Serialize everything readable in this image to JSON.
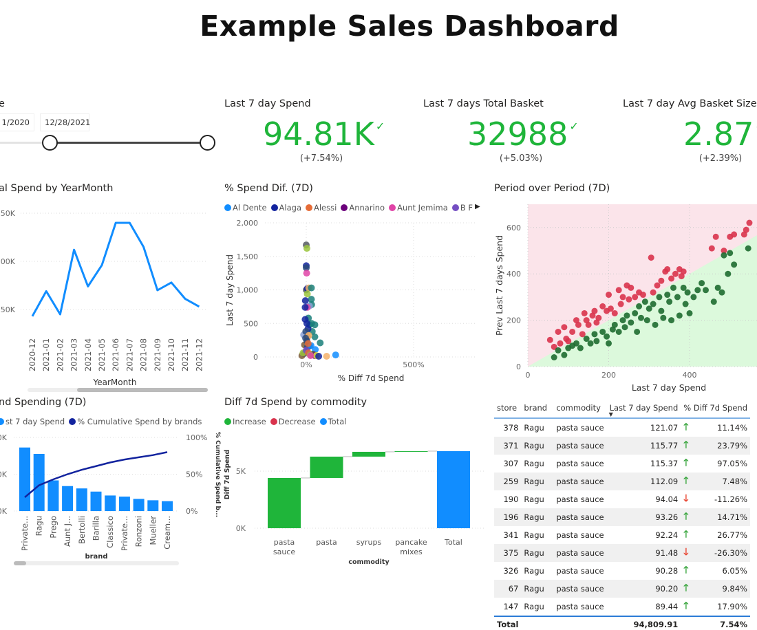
{
  "title": "Example Sales Dashboard",
  "slicer": {
    "label": "e",
    "start": "1/2020",
    "end": "12/28/2021"
  },
  "kpis": [
    {
      "label": "Last 7 day Spend",
      "value": "94.81K",
      "change": "(+7.54%)"
    },
    {
      "label": "Last 7 days Total Basket",
      "value": "32988",
      "change": "(+5.03%)"
    },
    {
      "label": "Last 7 day Avg Basket Size",
      "value": "2.87",
      "change": "(+2.39%)"
    }
  ],
  "check_glyph": "✓",
  "colors": {
    "green": "#1fb53a",
    "blue": "#118dff",
    "navy": "#12239e",
    "red": "#d9334d"
  },
  "chart_data": [
    {
      "type": "line",
      "title": "al Spend by YearMonth",
      "xlabel": "YearMonth",
      "ylabel": "",
      "yticks": [
        "150K",
        "100K",
        "50K"
      ],
      "ytick_values": [
        150000,
        100000,
        50000
      ],
      "categories": [
        "2020-12",
        "2021-01",
        "2021-02",
        "2021-03",
        "2021-04",
        "2021-05",
        "2021-06",
        "2021-07",
        "2021-08",
        "2021-09",
        "2021-10",
        "2021-11",
        "2021-12"
      ],
      "values": [
        43000,
        69000,
        45000,
        112000,
        74000,
        96000,
        140000,
        140000,
        115000,
        70000,
        78000,
        61000,
        53000
      ]
    },
    {
      "type": "scatter",
      "title": "% Spend Dif. (7D)",
      "xlabel": "% Diff 7d Spend",
      "ylabel": "Last 7 day Spend",
      "legend": [
        {
          "name": "Al Dente",
          "color": "#118dff"
        },
        {
          "name": "Alaga",
          "color": "#12239e"
        },
        {
          "name": "Alessi",
          "color": "#e66c37"
        },
        {
          "name": "Annarino",
          "color": "#6b007b"
        },
        {
          "name": "Aunt Jemima",
          "color": "#e044a7"
        },
        {
          "name": "B F",
          "color": "#744ec2"
        }
      ],
      "legend_more": "▶",
      "xticks": [
        "0%",
        "500%"
      ],
      "xtick_values": [
        0,
        500
      ],
      "yticks": [
        "2,000",
        "1,500",
        "1,000",
        "500",
        "0"
      ],
      "ytick_values": [
        2000,
        1500,
        1000,
        500,
        0
      ],
      "xlim": [
        -90,
        720
      ],
      "ylim": [
        0,
        2000
      ],
      "palette": [
        "#118dff",
        "#12239e",
        "#e66c37",
        "#6b007b",
        "#e044a7",
        "#744ec2",
        "#555a60",
        "#9bc53d",
        "#1a7f7a",
        "#f5b26b",
        "#8aa1d6",
        "#7b5a36",
        "#d8e63a",
        "#2a4a7a"
      ],
      "points": [
        [
          0,
          1670,
          6
        ],
        [
          3,
          1620,
          7
        ],
        [
          0,
          1360,
          1
        ],
        [
          0,
          1330,
          13
        ],
        [
          2,
          1250,
          4
        ],
        [
          0,
          1000,
          6
        ],
        [
          5,
          1020,
          1
        ],
        [
          12,
          1030,
          9
        ],
        [
          24,
          1030,
          8
        ],
        [
          24,
          860,
          8
        ],
        [
          25,
          780,
          8
        ],
        [
          5,
          940,
          7
        ],
        [
          15,
          760,
          10
        ],
        [
          5,
          740,
          4
        ],
        [
          -5,
          740,
          1
        ],
        [
          -4,
          840,
          1
        ],
        [
          10,
          580,
          8
        ],
        [
          16,
          480,
          8
        ],
        [
          25,
          500,
          8
        ],
        [
          28,
          380,
          8
        ],
        [
          40,
          480,
          8
        ],
        [
          40,
          300,
          8
        ],
        [
          65,
          210,
          8
        ],
        [
          -12,
          330,
          10
        ],
        [
          -5,
          560,
          1
        ],
        [
          3,
          500,
          1
        ],
        [
          8,
          420,
          1
        ],
        [
          -2,
          380,
          13
        ],
        [
          6,
          300,
          11
        ],
        [
          12,
          320,
          9
        ],
        [
          -8,
          180,
          11
        ],
        [
          -10,
          50,
          1
        ],
        [
          1,
          80,
          1
        ],
        [
          6,
          150,
          13
        ],
        [
          15,
          160,
          13
        ],
        [
          22,
          170,
          0
        ],
        [
          42,
          110,
          0
        ],
        [
          28,
          40,
          6
        ],
        [
          33,
          40,
          6
        ],
        [
          40,
          20,
          3
        ],
        [
          47,
          20,
          12
        ],
        [
          58,
          10,
          1
        ],
        [
          -20,
          20,
          11
        ],
        [
          -15,
          60,
          7
        ],
        [
          0,
          100,
          5
        ],
        [
          10,
          60,
          2
        ],
        [
          18,
          30,
          7
        ],
        [
          20,
          20,
          4
        ],
        [
          3,
          240,
          13
        ],
        [
          -3,
          280,
          13
        ],
        [
          9,
          200,
          2
        ],
        [
          95,
          10,
          9
        ],
        [
          137,
          30,
          0
        ]
      ]
    },
    {
      "type": "scatter",
      "title": "Period over Period (7D)",
      "xlabel": "Last 7 day Spend",
      "ylabel": "Prev Last 7 days Spend",
      "xticks": [
        "0",
        "200",
        "400"
      ],
      "xtick_values": [
        0,
        200,
        400
      ],
      "yticks": [
        "600",
        "400",
        "200",
        "0"
      ],
      "ytick_values": [
        600,
        400,
        200,
        0
      ],
      "xlim": [
        0,
        560
      ],
      "ylim": [
        0,
        700
      ],
      "above_color": "#d9334d",
      "below_color": "#1e6b30",
      "points": [
        [
          55,
          115
        ],
        [
          65,
          85
        ],
        [
          75,
          150
        ],
        [
          80,
          100
        ],
        [
          90,
          170
        ],
        [
          95,
          120
        ],
        [
          100,
          110
        ],
        [
          110,
          150
        ],
        [
          120,
          200
        ],
        [
          125,
          180
        ],
        [
          135,
          140
        ],
        [
          140,
          230
        ],
        [
          145,
          200
        ],
        [
          150,
          180
        ],
        [
          160,
          220
        ],
        [
          165,
          240
        ],
        [
          170,
          190
        ],
        [
          175,
          210
        ],
        [
          185,
          260
        ],
        [
          195,
          240
        ],
        [
          200,
          310
        ],
        [
          205,
          250
        ],
        [
          215,
          230
        ],
        [
          225,
          330
        ],
        [
          230,
          270
        ],
        [
          235,
          300
        ],
        [
          245,
          350
        ],
        [
          250,
          290
        ],
        [
          255,
          340
        ],
        [
          265,
          300
        ],
        [
          275,
          320
        ],
        [
          285,
          310
        ],
        [
          305,
          470
        ],
        [
          310,
          320
        ],
        [
          320,
          350
        ],
        [
          330,
          370
        ],
        [
          340,
          410
        ],
        [
          345,
          420
        ],
        [
          355,
          380
        ],
        [
          365,
          400
        ],
        [
          375,
          420
        ],
        [
          380,
          390
        ],
        [
          385,
          410
        ],
        [
          455,
          510
        ],
        [
          465,
          560
        ],
        [
          485,
          500
        ],
        [
          500,
          560
        ],
        [
          510,
          570
        ],
        [
          535,
          570
        ],
        [
          540,
          590
        ],
        [
          548,
          620
        ],
        [
          65,
          40
        ],
        [
          75,
          70
        ],
        [
          90,
          50
        ],
        [
          100,
          80
        ],
        [
          110,
          90
        ],
        [
          120,
          100
        ],
        [
          130,
          80
        ],
        [
          145,
          120
        ],
        [
          155,
          100
        ],
        [
          165,
          140
        ],
        [
          170,
          110
        ],
        [
          185,
          150
        ],
        [
          195,
          130
        ],
        [
          200,
          100
        ],
        [
          210,
          160
        ],
        [
          215,
          180
        ],
        [
          225,
          150
        ],
        [
          235,
          200
        ],
        [
          240,
          170
        ],
        [
          245,
          220
        ],
        [
          255,
          190
        ],
        [
          265,
          230
        ],
        [
          270,
          150
        ],
        [
          275,
          260
        ],
        [
          280,
          210
        ],
        [
          290,
          280
        ],
        [
          295,
          200
        ],
        [
          300,
          250
        ],
        [
          310,
          270
        ],
        [
          315,
          180
        ],
        [
          325,
          300
        ],
        [
          330,
          240
        ],
        [
          335,
          210
        ],
        [
          345,
          310
        ],
        [
          350,
          280
        ],
        [
          355,
          200
        ],
        [
          360,
          340
        ],
        [
          370,
          300
        ],
        [
          375,
          220
        ],
        [
          385,
          340
        ],
        [
          390,
          270
        ],
        [
          395,
          320
        ],
        [
          400,
          230
        ],
        [
          410,
          300
        ],
        [
          420,
          330
        ],
        [
          430,
          360
        ],
        [
          440,
          330
        ],
        [
          460,
          280
        ],
        [
          470,
          340
        ],
        [
          480,
          320
        ],
        [
          485,
          480
        ],
        [
          495,
          400
        ],
        [
          500,
          490
        ],
        [
          510,
          440
        ],
        [
          545,
          510
        ]
      ]
    },
    {
      "type": "bar",
      "title": "nd Spending (7D)",
      "xlabel": "brand",
      "y2label": "% Cumulative Spend b...",
      "legend": [
        {
          "name": "st 7 day Spend",
          "color": "#118dff"
        },
        {
          "name": "% Cumulative Spend by brands",
          "color": "#12239e"
        }
      ],
      "yticks": [
        "0K",
        "0K",
        "0K"
      ],
      "y2ticks": [
        "100%",
        "50%",
        "0%"
      ],
      "categories": [
        "Private...",
        "Ragu",
        "Prego",
        "Aunt J...",
        "Bertolli",
        "Barilla",
        "Classico",
        "Private...",
        "Ronzoni",
        "Mueller",
        "Cream..."
      ],
      "values_pct_of_axis": [
        86.3,
        77.6,
        41.6,
        33.9,
        30.7,
        26.4,
        21.1,
        19.6,
        16.5,
        14.6,
        13.4
      ],
      "cumulative_pct": [
        18.6,
        35,
        43,
        50,
        56,
        61,
        66,
        70,
        73,
        76,
        80
      ]
    },
    {
      "type": "bar",
      "subtype": "waterfall",
      "title": "Diff 7d Spend by commodity",
      "xlabel": "commodity",
      "ylabel": "Diff 7d Spend",
      "legend": [
        {
          "name": "Increase",
          "color": "#1fb53a"
        },
        {
          "name": "Decrease",
          "color": "#d9334d"
        },
        {
          "name": "Total",
          "color": "#118dff"
        }
      ],
      "yticks": [
        "5K",
        "0K"
      ],
      "ytick_values": [
        5000,
        0
      ],
      "ylim": [
        0,
        7600
      ],
      "categories": [
        [
          "pasta",
          "sauce"
        ],
        [
          "pasta"
        ],
        [
          "syrups"
        ],
        [
          "pancake",
          "mixes"
        ],
        [
          "Total"
        ]
      ],
      "values": [
        4400,
        1870,
        420,
        60,
        6750
      ]
    }
  ],
  "table": {
    "headers": [
      "store",
      "brand",
      "commodity",
      "Last 7 day Spend",
      "% Diff 7d Spend"
    ],
    "sort_glyph": "▼",
    "rows": [
      [
        "378",
        "Ragu",
        "pasta sauce",
        "121.07",
        "up",
        "11.14%"
      ],
      [
        "371",
        "Ragu",
        "pasta sauce",
        "115.77",
        "up",
        "23.79%"
      ],
      [
        "307",
        "Ragu",
        "pasta sauce",
        "115.37",
        "up",
        "97.05%"
      ],
      [
        "259",
        "Ragu",
        "pasta sauce",
        "112.09",
        "up",
        "7.48%"
      ],
      [
        "190",
        "Ragu",
        "pasta sauce",
        "94.04",
        "down",
        "-11.26%"
      ],
      [
        "196",
        "Ragu",
        "pasta sauce",
        "93.26",
        "up",
        "14.71%"
      ],
      [
        "341",
        "Ragu",
        "pasta sauce",
        "92.24",
        "up",
        "26.77%"
      ],
      [
        "375",
        "Ragu",
        "pasta sauce",
        "91.48",
        "down",
        "-26.30%"
      ],
      [
        "326",
        "Ragu",
        "pasta sauce",
        "90.28",
        "up",
        "6.05%"
      ],
      [
        "67",
        "Ragu",
        "pasta sauce",
        "90.20",
        "up",
        "9.84%"
      ],
      [
        "147",
        "Ragu",
        "pasta sauce",
        "89.44",
        "up",
        "17.90%"
      ]
    ],
    "total": {
      "label": "Total",
      "spend": "94,809.91",
      "diff": "7.54%"
    },
    "arrows": {
      "up": "🡑",
      "down": "🡓"
    }
  }
}
